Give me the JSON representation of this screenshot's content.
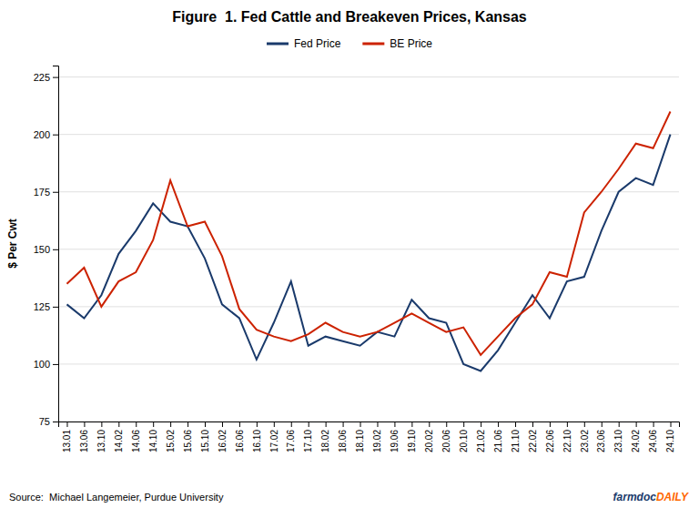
{
  "chart_data": {
    "type": "line",
    "title": "Figure  1. Fed Cattle and Breakeven Prices, Kansas",
    "y_label": "$ Per Cwt",
    "source": "Source:  Michael Langemeier, Purdue University",
    "annotations": [
      {
        "text": "farmdoc",
        "color": "#1a3a6b"
      },
      {
        "text": "DAILY",
        "color": "#ff6600"
      }
    ],
    "categories": [
      "13.01",
      "13.06",
      "13.10",
      "14.02",
      "14.06",
      "14.10",
      "15.02",
      "15.06",
      "15.10",
      "16.02",
      "16.06",
      "16.10",
      "17.02",
      "17.06",
      "17.10",
      "18.02",
      "18.06",
      "18.10",
      "19.02",
      "19.06",
      "19.10",
      "20.02",
      "20.06",
      "20.10",
      "21.02",
      "21.06",
      "21.10",
      "22.02",
      "22.06",
      "22.10",
      "23.02",
      "23.06",
      "23.10",
      "24.02",
      "24.06",
      "24.10"
    ],
    "series": [
      {
        "name": "Fed Price",
        "color": "#1a3a6b",
        "values": [
          126,
          120,
          130,
          148,
          158,
          170,
          162,
          160,
          146,
          126,
          120,
          102,
          118,
          136,
          108,
          112,
          110,
          108,
          114,
          112,
          128,
          120,
          118,
          100,
          97,
          106,
          118,
          130,
          120,
          136,
          138,
          158,
          175,
          181,
          178,
          200
        ]
      },
      {
        "name": "BE Price",
        "color": "#cc2200",
        "values": [
          135,
          142,
          125,
          136,
          140,
          154,
          180,
          160,
          162,
          147,
          124,
          115,
          112,
          110,
          113,
          118,
          114,
          112,
          114,
          118,
          122,
          118,
          114,
          116,
          104,
          112,
          120,
          126,
          140,
          138,
          166,
          175,
          185,
          196,
          194,
          210
        ]
      }
    ],
    "ylim": [
      75,
      230
    ],
    "yticks": [
      75,
      100,
      125,
      150,
      175,
      200,
      225
    ],
    "grid": true,
    "legend": "top"
  }
}
